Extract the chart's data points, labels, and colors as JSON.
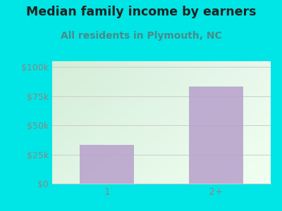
{
  "title": "Median family income by earners",
  "subtitle": "All residents in Plymouth, NC",
  "categories": [
    "1",
    "2+"
  ],
  "values": [
    33000,
    83000
  ],
  "bar_color": "#b8a0cc",
  "background_outer": "#00e5e5",
  "gradient_top_left": "#d4edd8",
  "gradient_bottom_right": "#f0fff0",
  "yticks": [
    0,
    25000,
    50000,
    75000,
    100000
  ],
  "ytick_labels": [
    "$0",
    "$25k",
    "$50k",
    "$75k",
    "$100k"
  ],
  "ylim": [
    0,
    105000
  ],
  "title_fontsize": 12.5,
  "subtitle_fontsize": 10,
  "title_color": "#222222",
  "subtitle_color": "#4a8a8a",
  "tick_color": "#888888",
  "grid_color": "#cccccc",
  "bar_alpha": 0.85
}
